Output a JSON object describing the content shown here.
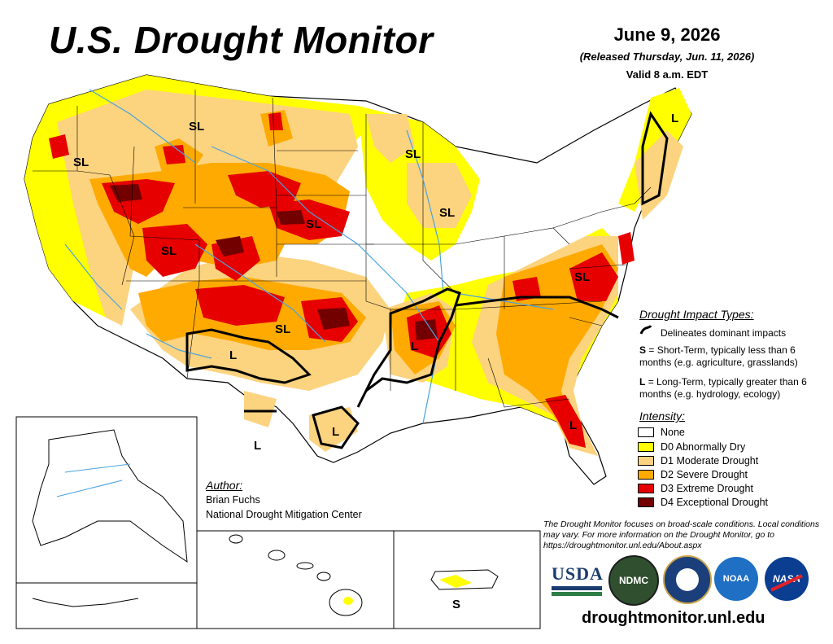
{
  "header": {
    "title": "U.S. Drought Monitor",
    "date": "June 9, 2026",
    "released": "(Released Thursday, Jun. 11, 2026)",
    "valid": "Valid 8 a.m. EDT"
  },
  "map_labels": {
    "sl": "SL",
    "l": "L",
    "s": "S"
  },
  "impact_legend": {
    "title": "Drought Impact Types:",
    "delineates": "Delineates dominant impacts",
    "s_key": "S",
    "s_text": "= Short-Term, typically less than 6 months (e.g. agriculture, grasslands)",
    "l_key": "L",
    "l_text": "= Long-Term, typically greater than 6 months (e.g. hydrology, ecology)"
  },
  "intensity_legend": {
    "title": "Intensity:",
    "items": [
      {
        "label": "None",
        "color": "#ffffff"
      },
      {
        "label": "D0 Abnormally Dry",
        "color": "#ffff00"
      },
      {
        "label": "D1 Moderate Drought",
        "color": "#fcd37f"
      },
      {
        "label": "D2 Severe Drought",
        "color": "#ffaa00"
      },
      {
        "label": "D3 Extreme Drought",
        "color": "#e60000"
      },
      {
        "label": "D4 Exceptional Drought",
        "color": "#730000"
      }
    ]
  },
  "author": {
    "title": "Author:",
    "name": "Brian Fuchs",
    "org": "National Drought Mitigation Center"
  },
  "disclaimer": "The Drought Monitor focuses on broad-scale conditions. Local conditions may vary. For more information on the Drought Monitor, go to https://droughtmonitor.unl.edu/About.aspx",
  "logos": {
    "usda": "USDA",
    "ndmc": "NDMC",
    "noaa": "NOAA",
    "nasa": "NASA"
  },
  "website": "droughtmonitor.unl.edu"
}
